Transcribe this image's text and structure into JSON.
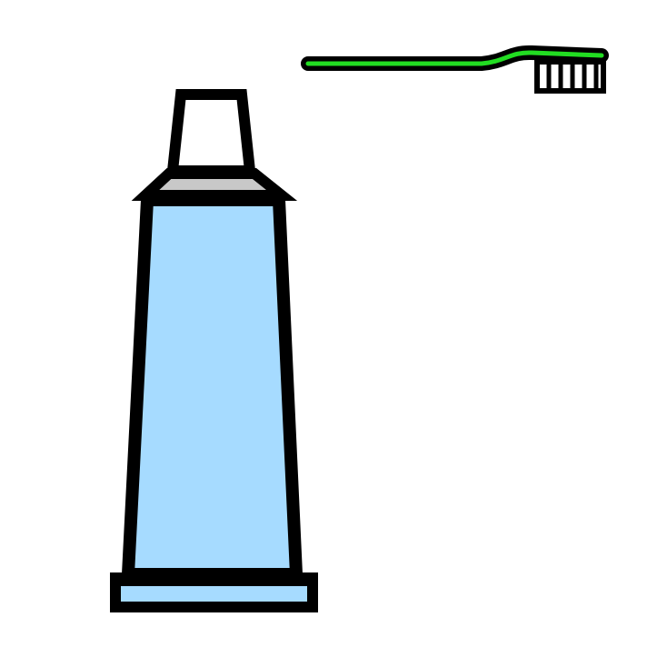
{
  "scene": {
    "background_color": "#ffffff",
    "outline_color": "#000000",
    "toothpaste_tube": {
      "icon": "toothpaste-tube-icon",
      "body_color": "#a6dbff",
      "cap_color": "#ffffff",
      "neck_color": "#c8c8c8"
    },
    "toothbrush": {
      "icon": "toothbrush-icon",
      "handle_color": "#22dd22",
      "bristle_color": "#ffffff"
    }
  }
}
